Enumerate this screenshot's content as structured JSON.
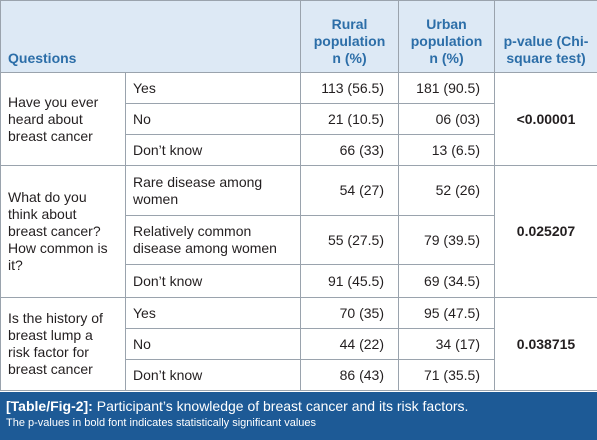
{
  "header": {
    "questions": "Questions",
    "rural": "Rural population n (%)",
    "urban": "Urban population n (%)",
    "p_value": "p-value (Chi-square test)"
  },
  "groups": [
    {
      "question": "Have you ever heard about breast cancer",
      "p_value": "<0.00001",
      "answers": [
        {
          "answer": "Yes",
          "rural": "113 (56.5)",
          "urban": "181 (90.5)"
        },
        {
          "answer": "No",
          "rural": "21 (10.5)",
          "urban": "06 (03)"
        },
        {
          "answer": "Don’t know",
          "rural": "66 (33)",
          "urban": "13 (6.5)"
        }
      ]
    },
    {
      "question": "What do you think about breast cancer? How common is it?",
      "p_value": "0.025207",
      "answers": [
        {
          "answer": "Rare disease among women",
          "rural": "54 (27)",
          "urban": "52 (26)"
        },
        {
          "answer": "Relatively common disease among women",
          "rural": "55 (27.5)",
          "urban": "79 (39.5)"
        },
        {
          "answer": "Don’t know",
          "rural": "91 (45.5)",
          "urban": "69 (34.5)"
        }
      ]
    },
    {
      "question": "Is the history of breast lump a risk factor for breast cancer",
      "p_value": "0.038715",
      "answers": [
        {
          "answer": "Yes",
          "rural": "70 (35)",
          "urban": "95 (47.5)"
        },
        {
          "answer": "No",
          "rural": "44 (22)",
          "urban": "34 (17)"
        },
        {
          "answer": "Don’t know",
          "rural": "86 (43)",
          "urban": "71 (35.5)"
        }
      ]
    }
  ],
  "caption": {
    "label": "[Table/Fig-2]:",
    "text": "Participant’s knowledge of breast cancer and its risk factors.",
    "note": "The p-values in bold font indicates statistically significant values"
  }
}
